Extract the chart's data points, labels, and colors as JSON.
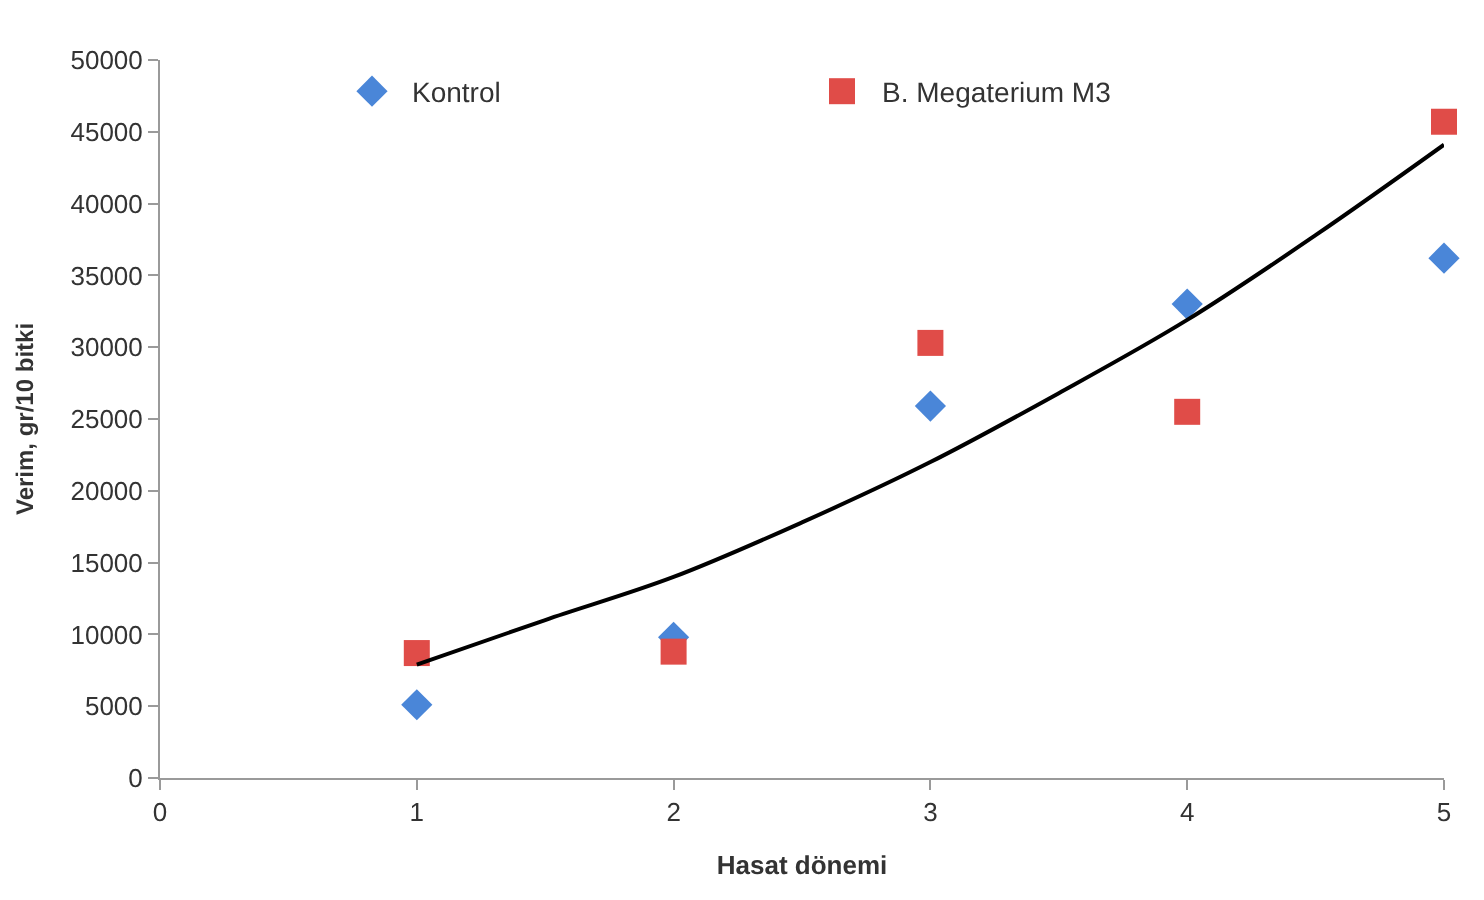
{
  "chart_data": {
    "type": "scatter",
    "xlabel": "Hasat dönemi",
    "ylabel": "Verim, gr/10 bitki",
    "x": [
      1,
      2,
      3,
      4,
      5
    ],
    "series": [
      {
        "name": "Kontrol",
        "color": "#4a86d8",
        "marker": "diamond",
        "values": [
          5100,
          9800,
          25900,
          33000,
          36200
        ]
      },
      {
        "name": "B. Megaterium M3",
        "color": "#e04c48",
        "marker": "square",
        "values": [
          8700,
          8800,
          30300,
          25500,
          45700
        ]
      },
      {
        "type": "line",
        "color": "#000000",
        "marker": "none",
        "x": [
          1,
          1.5,
          2,
          2.5,
          3,
          3.5,
          4,
          4.5,
          5
        ],
        "values": [
          7900,
          11000,
          14000,
          17800,
          22000,
          26800,
          31900,
          37800,
          44100
        ]
      }
    ],
    "xlim": [
      0,
      5
    ],
    "xticks": [
      0,
      1,
      2,
      3,
      4,
      5
    ],
    "ylim": [
      0,
      50000
    ],
    "yticks": [
      0,
      5000,
      10000,
      15000,
      20000,
      25000,
      30000,
      35000,
      40000,
      45000,
      50000
    ],
    "legend": "top"
  }
}
